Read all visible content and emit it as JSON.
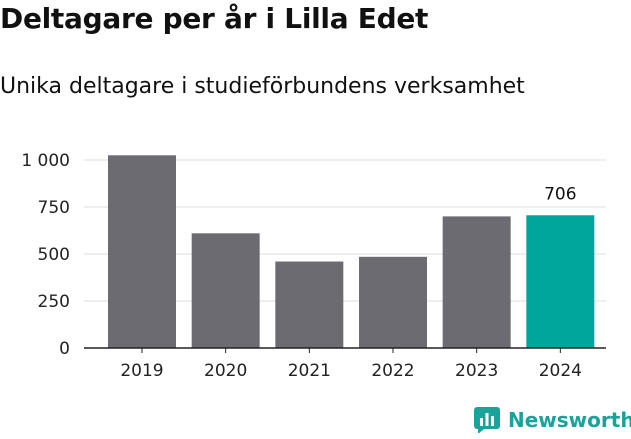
{
  "title": "Deltagare per år i Lilla Edet",
  "subtitle": "Unika deltagare i studieförbundens verksamhet",
  "brand": {
    "name": "Newsworthy",
    "color": "#1aa39a",
    "icon": "bar-chart-logo-icon"
  },
  "colors": {
    "bar": "#6c6b72",
    "highlight": "#00a69c",
    "grid": "#dcdcdc",
    "axis": "#222222"
  },
  "chart_data": {
    "type": "bar",
    "categories": [
      "2019",
      "2020",
      "2021",
      "2022",
      "2023",
      "2024"
    ],
    "values": [
      1025,
      610,
      460,
      485,
      700,
      706
    ],
    "highlight_index": 5,
    "data_labels": [
      {
        "index": 5,
        "text": "706"
      }
    ],
    "yticks": [
      0,
      250,
      500,
      750,
      1000
    ],
    "ytick_labels": [
      "0",
      "250",
      "500",
      "750",
      "1 000"
    ],
    "ylim": [
      0,
      1000
    ],
    "grid": true,
    "legend": "none",
    "xlabel": "",
    "ylabel": ""
  }
}
